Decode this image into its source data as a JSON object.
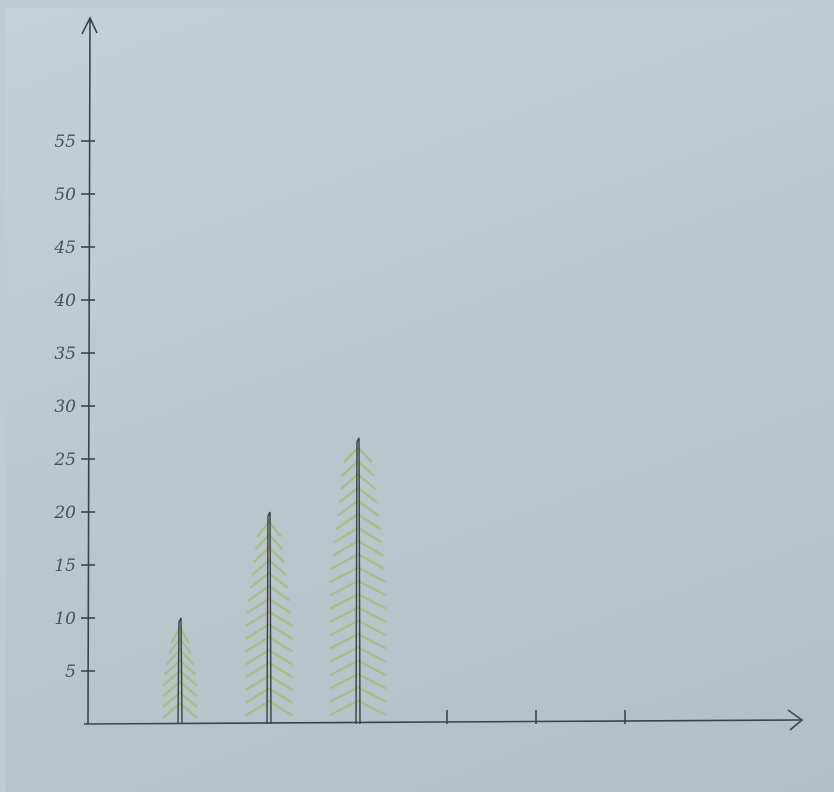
{
  "chart_data": {
    "type": "bar",
    "title": "",
    "xlabel": "",
    "ylabel": "",
    "ylim": [
      0,
      60
    ],
    "yticks": [
      "5",
      "10",
      "15",
      "20",
      "25",
      "30",
      "35",
      "40",
      "45",
      "50",
      "55"
    ],
    "categories": [
      "",
      "",
      "",
      "",
      "",
      "",
      ""
    ],
    "values": [
      10,
      20,
      27,
      null,
      null,
      null,
      null
    ],
    "style": "hand-drawn pictogram trees (fir tree bars)",
    "colors": {
      "foliage": "#9fc07a",
      "ink": "#3c424a"
    }
  }
}
